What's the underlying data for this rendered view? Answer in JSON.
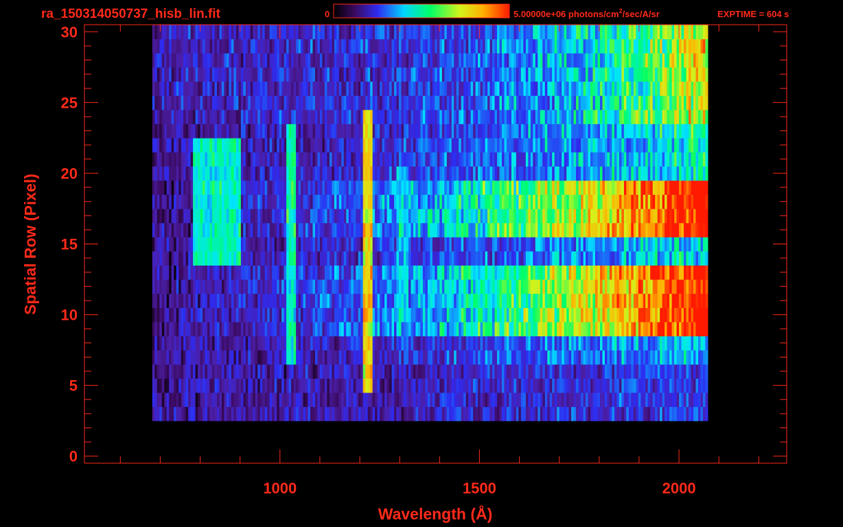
{
  "header": {
    "filename": "ra_150314050737_hisb_lin.fit",
    "colorbar_min": "0",
    "colorbar_max": "5.00000e+06 photons/cm",
    "colorbar_max_sup": "2",
    "colorbar_max_tail": "/sec/A/sr",
    "exptime": "EXPTIME = 604 s"
  },
  "colors": {
    "axis": "#ff2a1a",
    "background": "#000000",
    "colormap": [
      "#000000",
      "#3a0a5e",
      "#4b1fa8",
      "#2e2bf0",
      "#1a6df7",
      "#00e5ff",
      "#00ff66",
      "#d4f21a",
      "#ffb000",
      "#ff1a00"
    ]
  },
  "chart_data": {
    "type": "heatmap",
    "title": "ra_150314050737_hisb_lin.fit",
    "xlabel": "Wavelength (Å)",
    "ylabel": "Spatial Row (Pixel)",
    "xlim": [
      510,
      2270
    ],
    "ylim": [
      -0.5,
      30.5
    ],
    "x_ticks": [
      1000,
      1500,
      2000
    ],
    "y_ticks": [
      0,
      5,
      10,
      15,
      20,
      25,
      30
    ],
    "colorbar": {
      "min": 0,
      "max": 5000000,
      "units": "photons/cm^2/sec/A/sr"
    },
    "exptime_s": 604,
    "signal_x_range": [
      680,
      2070
    ],
    "signal_rows": [
      3,
      30
    ],
    "bright_bands_rows": [
      [
        9,
        13
      ],
      [
        16,
        19
      ]
    ],
    "emission_features": [
      {
        "wavelength": 1025,
        "rows": [
          7,
          23
        ],
        "intensity_fraction": 0.5
      },
      {
        "wavelength": 1216,
        "rows": [
          5,
          24
        ],
        "intensity_fraction": 0.75
      },
      {
        "wavelength": 1304,
        "rows": [
          10,
          20
        ],
        "intensity_fraction": 0.45
      }
    ],
    "continuum_peak_fraction": 1.0,
    "grid": false
  }
}
